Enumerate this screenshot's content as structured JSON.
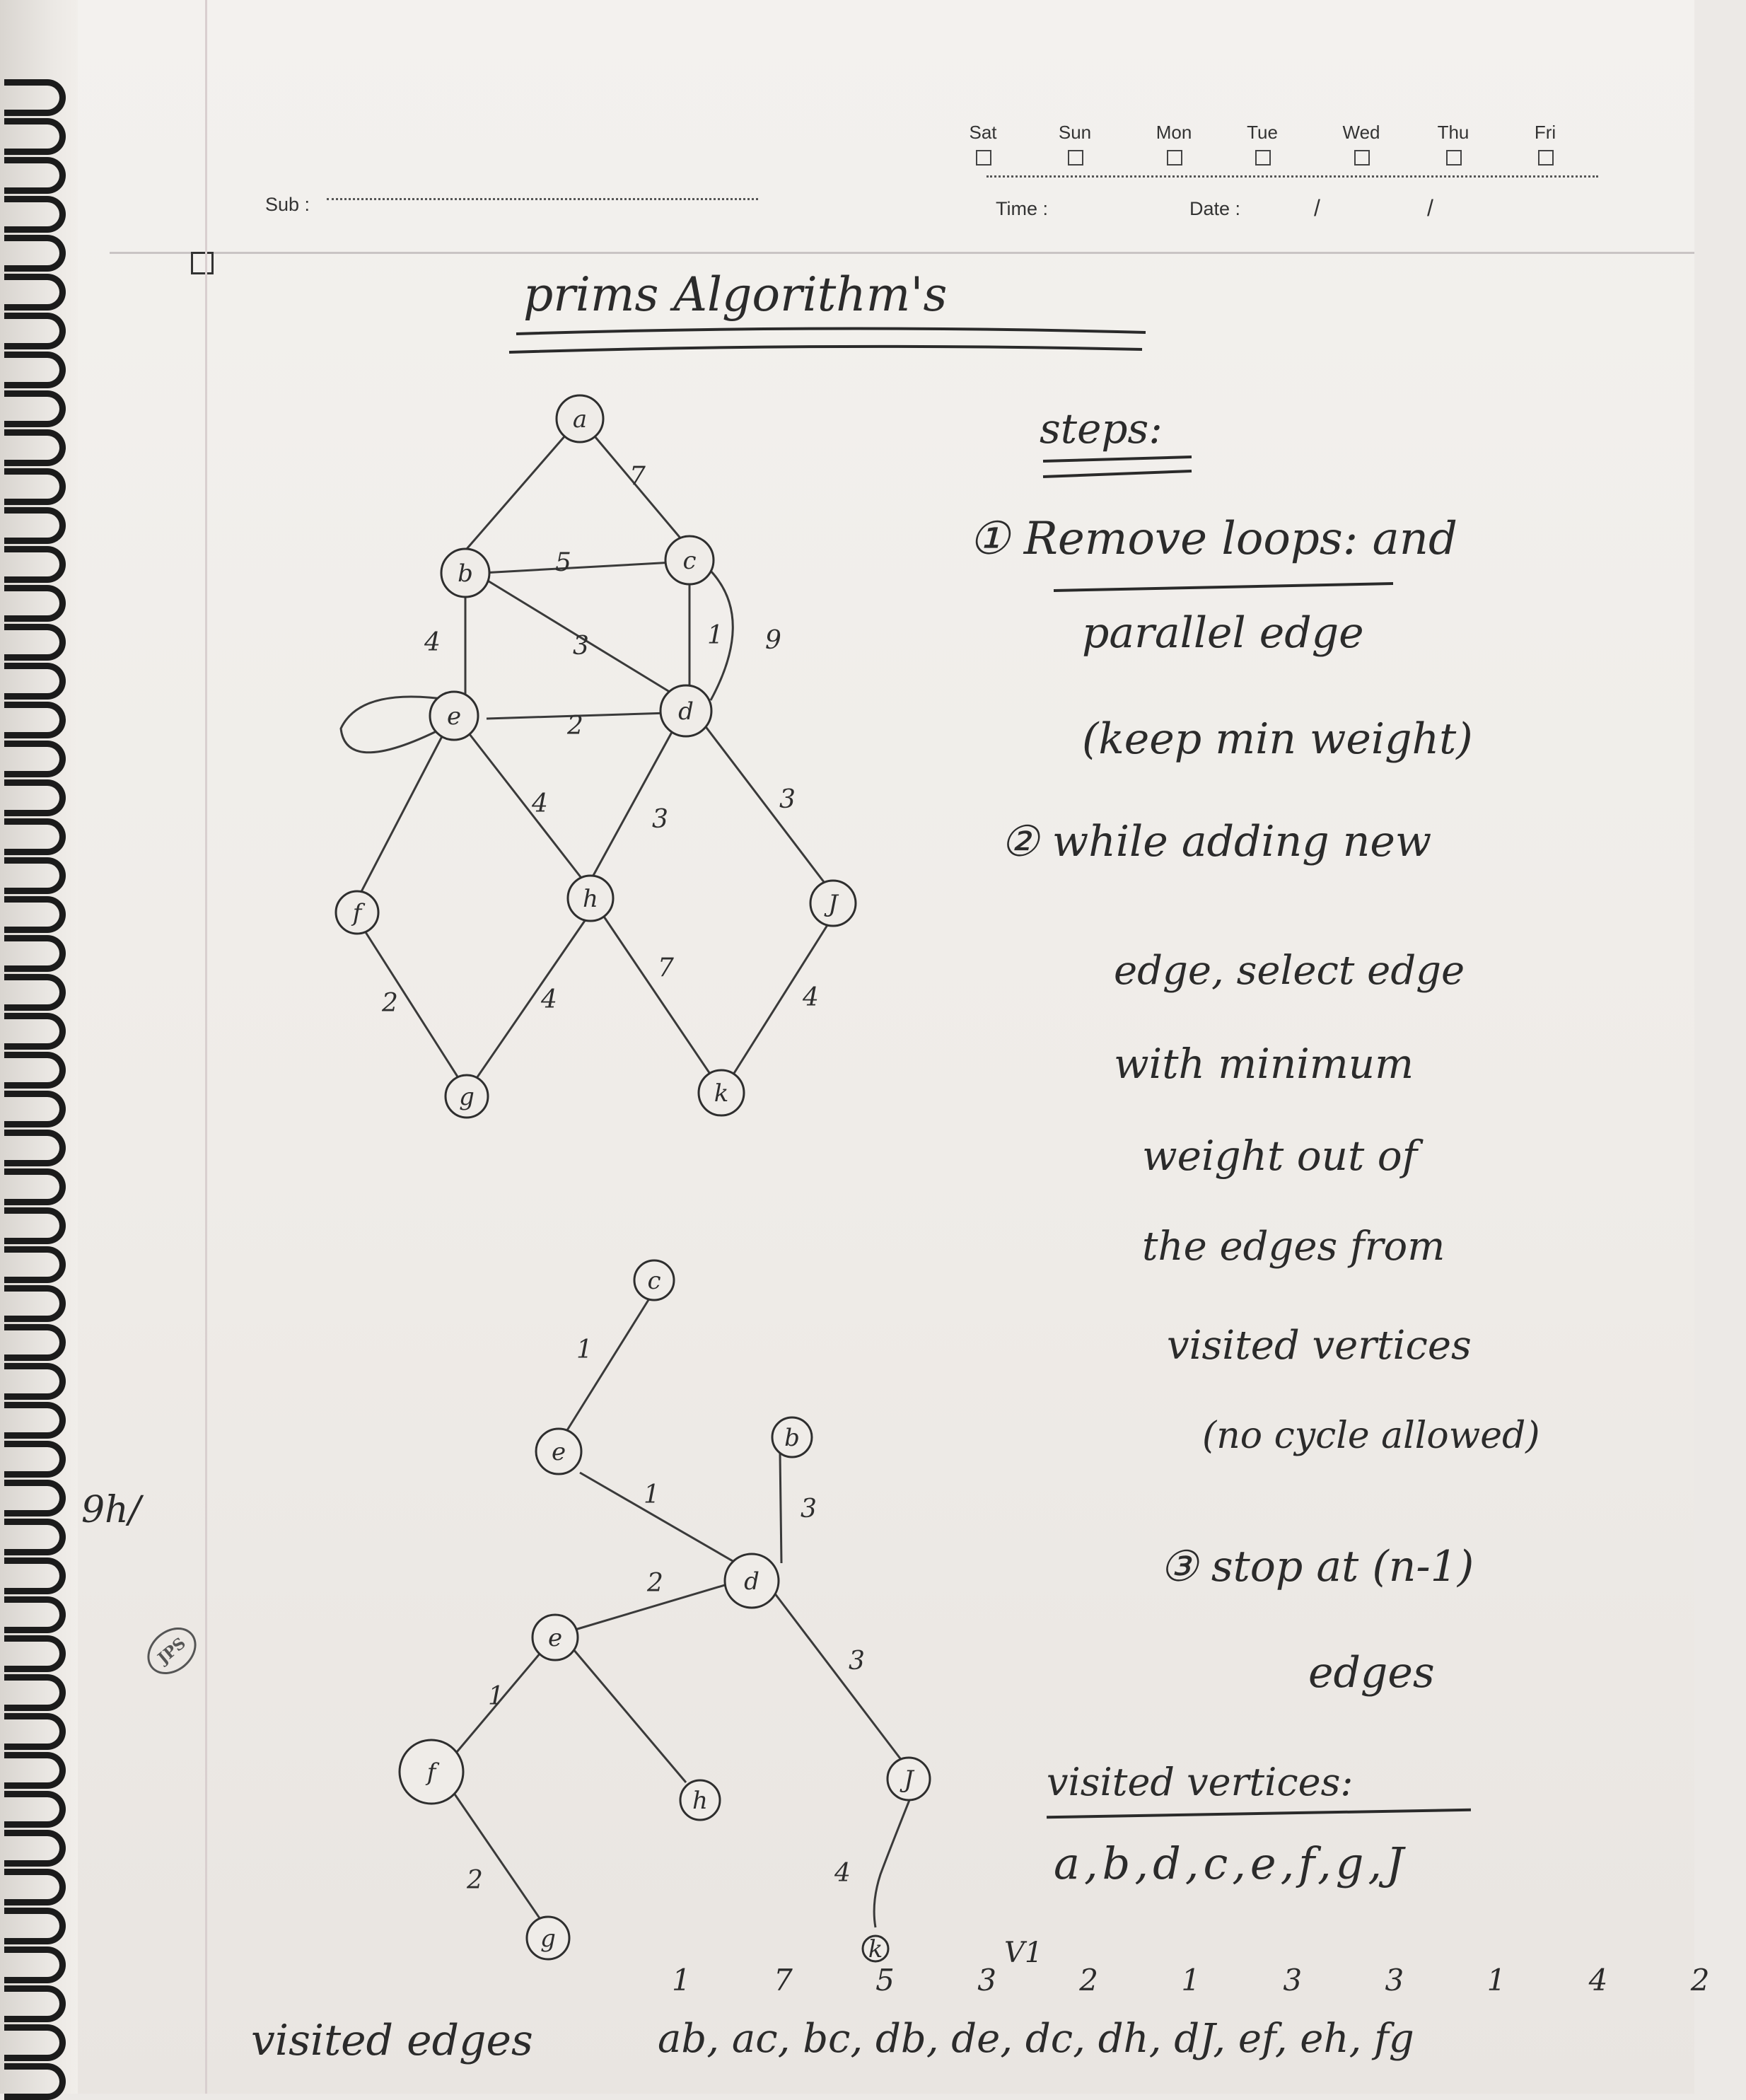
{
  "header": {
    "days": [
      "Sat",
      "Sun",
      "Mon",
      "Tue",
      "Wed",
      "Thu",
      "Fri"
    ],
    "sub_label": "Sub :",
    "time_label": "Time :",
    "date_label": "Date :",
    "date_sep1": "/",
    "date_sep2": "/",
    "margin_note": "9h/",
    "stamp": "JPS"
  },
  "title": "prims Algorithm's",
  "graph1": {
    "nodes": [
      {
        "id": "a",
        "label": "a"
      },
      {
        "id": "b",
        "label": "b"
      },
      {
        "id": "c",
        "label": "c"
      },
      {
        "id": "e",
        "label": "e"
      },
      {
        "id": "d",
        "label": "d"
      },
      {
        "id": "f",
        "label": "f"
      },
      {
        "id": "h",
        "label": "h"
      },
      {
        "id": "j",
        "label": "J"
      },
      {
        "id": "g",
        "label": "g"
      },
      {
        "id": "k",
        "label": "k"
      }
    ],
    "weights": [
      "7",
      "5",
      "4",
      "3",
      "1",
      "9",
      "2",
      "4",
      "3",
      "3",
      "2",
      "4",
      "7",
      "4"
    ]
  },
  "steps": {
    "heading": "steps:",
    "lines": [
      "① Remove loops: and",
      "parallel edge",
      "(keep min weight)",
      "② while adding new",
      "edge, select edge",
      "with minimum",
      "weight out of",
      "the edges from",
      "visited vertices",
      "(no cycle allowed)",
      "③ stop at (n-1)",
      "edges"
    ]
  },
  "graph2": {
    "nodes": [
      {
        "id": "c",
        "label": "c"
      },
      {
        "id": "b",
        "label": "b"
      },
      {
        "id": "e2",
        "label": "e"
      },
      {
        "id": "d",
        "label": "d"
      },
      {
        "id": "e",
        "label": "e"
      },
      {
        "id": "f",
        "label": "f"
      },
      {
        "id": "h",
        "label": "h"
      },
      {
        "id": "j",
        "label": "J"
      },
      {
        "id": "g",
        "label": "g"
      },
      {
        "id": "k",
        "label": "k"
      }
    ],
    "weights": [
      "1",
      "3",
      "1",
      "2",
      "3",
      "1",
      "2",
      "4"
    ]
  },
  "visited_vertices": {
    "label": "visited vertices:",
    "value": "a,b,d,c,e,f,g,J"
  },
  "visited_edges": {
    "label": "visited edges",
    "value": "ab, ac, bc, db, de, dc, dh, dJ, ef, eh, fg",
    "weights": "1 7 5 3 2 1 3 3 1 4 2",
    "note": "V1"
  }
}
